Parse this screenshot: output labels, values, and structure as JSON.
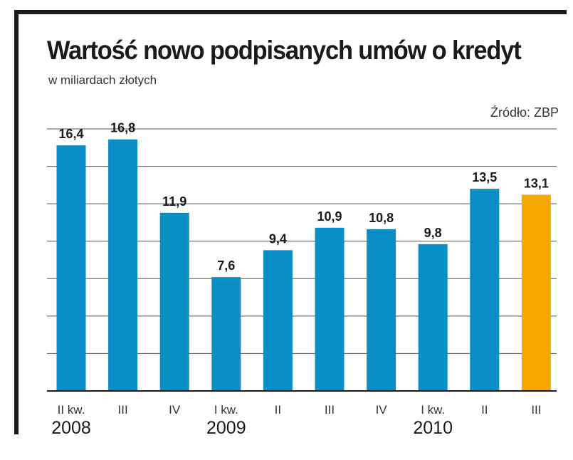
{
  "header": {
    "title": "Wartość nowo podpisanych umów o kredyt",
    "subtitle": "w miliardach złotych",
    "source": "Źródło: ZBP"
  },
  "colors": {
    "bar": "#0a8ec6",
    "highlight": "#f5a800",
    "grid": "#555555",
    "frame": "#1a1a1a"
  },
  "chart_data": {
    "type": "bar",
    "title": "Wartość nowo podpisanych umów o kredyt",
    "subtitle": "w miliardach złotych",
    "categories": [
      "II kw.",
      "III",
      "IV",
      "I kw.",
      "II",
      "III",
      "IV",
      "I kw.",
      "II",
      "III"
    ],
    "category_years": [
      "2008",
      "",
      "",
      "2009",
      "",
      "",
      "",
      "2010",
      "",
      ""
    ],
    "values": [
      16.4,
      16.8,
      11.9,
      7.6,
      9.4,
      10.9,
      10.8,
      9.8,
      13.5,
      13.1
    ],
    "value_labels": [
      "16,4",
      "16,8",
      "11,9",
      "7,6",
      "9,4",
      "10,9",
      "10,8",
      "9,8",
      "13,5",
      "13,1"
    ],
    "highlight_index": 9,
    "year_labels": [
      "2008",
      "2009",
      "2010"
    ],
    "ylim": [
      0,
      17.5
    ],
    "grid": true,
    "gridline_step": 2.5,
    "xlabel": "",
    "ylabel": ""
  }
}
